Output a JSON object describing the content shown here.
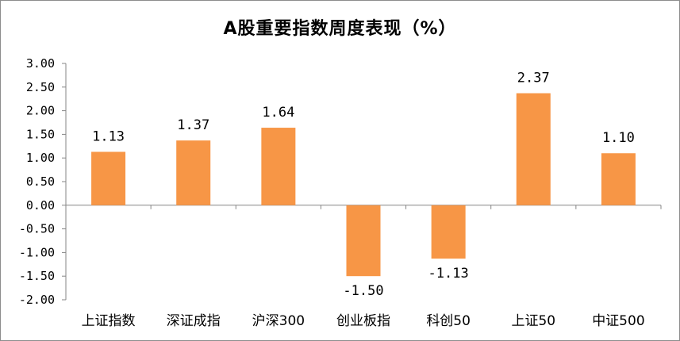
{
  "chart_data": {
    "type": "bar",
    "title": "A股重要指数周度表现（%）",
    "categories": [
      "上证指数",
      "深证成指",
      "沪深300",
      "创业板指",
      "科创50",
      "上证50",
      "中证500"
    ],
    "values": [
      1.13,
      1.37,
      1.64,
      -1.5,
      -1.13,
      2.37,
      1.1
    ],
    "data_labels": [
      "1.13",
      "1.37",
      "1.64",
      "-1.50",
      "-1.13",
      "2.37",
      "1.10"
    ],
    "ylim": [
      -2.0,
      3.0
    ],
    "yticks": [
      "3.00",
      "2.50",
      "2.00",
      "1.50",
      "1.00",
      "0.50",
      "0.00",
      "-0.50",
      "-1.00",
      "-1.50",
      "-2.00"
    ],
    "ytick_values": [
      3.0,
      2.5,
      2.0,
      1.5,
      1.0,
      0.5,
      0.0,
      -0.5,
      -1.0,
      -1.5,
      -2.0
    ],
    "xlabel": "",
    "ylabel": "",
    "grid": false,
    "legend": "none",
    "bar_color": "#F79646"
  }
}
